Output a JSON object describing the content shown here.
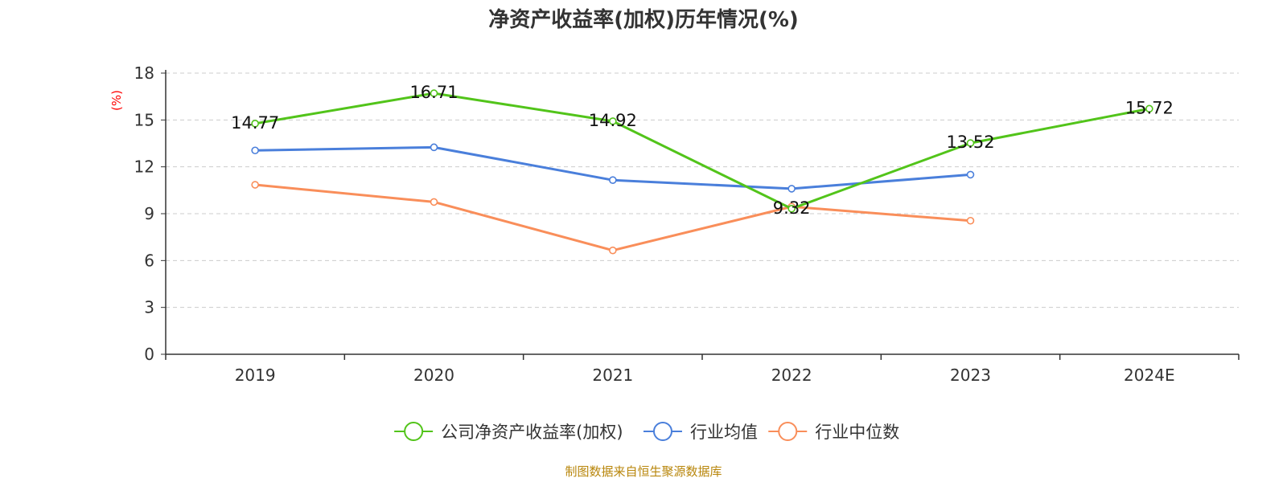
{
  "chart_data": {
    "type": "line",
    "title": "净资产收益率(加权)历年情况(%)",
    "ylabel": "(%)",
    "xlabel": "",
    "ylim": [
      0,
      18
    ],
    "yticks": [
      0,
      3,
      6,
      9,
      12,
      15,
      18
    ],
    "grid": true,
    "legend_position": "bottom-center",
    "categories": [
      "2019",
      "2020",
      "2021",
      "2022",
      "2023",
      "2024E"
    ],
    "series": [
      {
        "name": "公司净资产收益率(加权)",
        "color": "#52c41a",
        "values": [
          14.77,
          16.71,
          14.92,
          9.32,
          13.52,
          15.72
        ],
        "labels": [
          "14.77",
          "16.71",
          "14.92",
          "9.32",
          "13.52",
          "15.72"
        ]
      },
      {
        "name": "行业均值",
        "color": "#4a7fdb",
        "values": [
          13.05,
          13.25,
          11.15,
          10.6,
          11.5,
          null
        ]
      },
      {
        "name": "行业中位数",
        "color": "#f98e5a",
        "values": [
          10.85,
          9.75,
          6.65,
          9.45,
          8.55,
          null
        ]
      }
    ],
    "ylabel_color": "#ff0000",
    "source": "制图数据来自恒生聚源数据库",
    "source_color": "#b8860b"
  }
}
